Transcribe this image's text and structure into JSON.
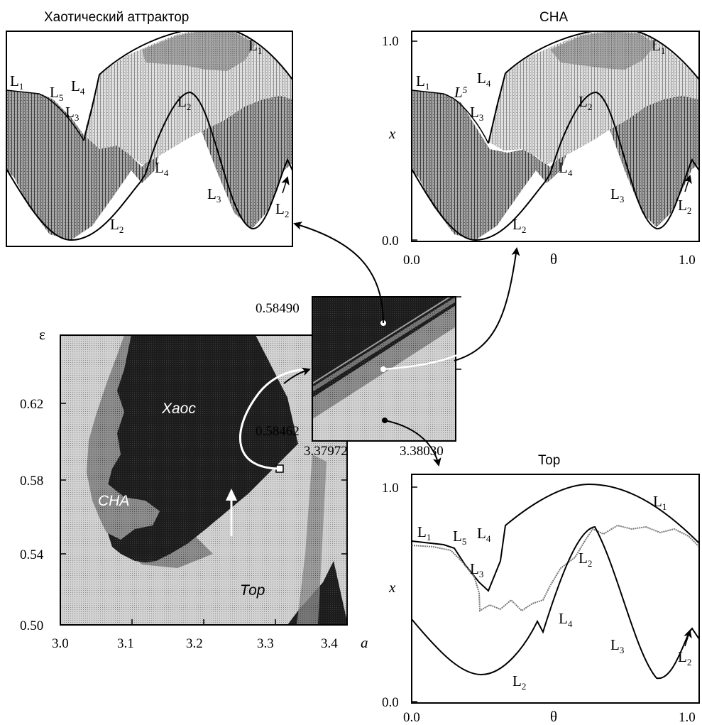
{
  "titles": {
    "chaos": "Хаотический аттрактор",
    "sna": "СНА",
    "torus": "Тор"
  },
  "map": {
    "y_axis_label": "ε",
    "x_axis_label": "a",
    "x_ticks": [
      "3.0",
      "3.1",
      "3.2",
      "3.3",
      "3.4"
    ],
    "y_ticks": [
      "0.62",
      "0.58",
      "0.54",
      "0.50"
    ],
    "regions": {
      "chaos": "Хаос",
      "sna": "СНА",
      "torus": "Тор"
    }
  },
  "zoom": {
    "y_top": "0.58490",
    "y_bottom": "0.58462",
    "x_left": "3.37972",
    "x_right": "3.38030"
  },
  "phase_axes": {
    "y_label": "x",
    "x_label": "θ",
    "x_ticks": [
      "0.0",
      "1.0"
    ],
    "y_ticks": [
      "1.0",
      "0.0"
    ]
  },
  "curve_labels": {
    "L1": "L",
    "L1_sub": "1",
    "L2": "L",
    "L2_sub": "2",
    "L3": "L",
    "L3_sub": "3",
    "L4": "L",
    "L4_sub": "4",
    "L5": "L",
    "L5_sub": "5"
  },
  "colors": {
    "dark": "#1e1e1e",
    "mid": "#7c7c7c",
    "light": "#c8c8c8",
    "ink": "#000000"
  }
}
